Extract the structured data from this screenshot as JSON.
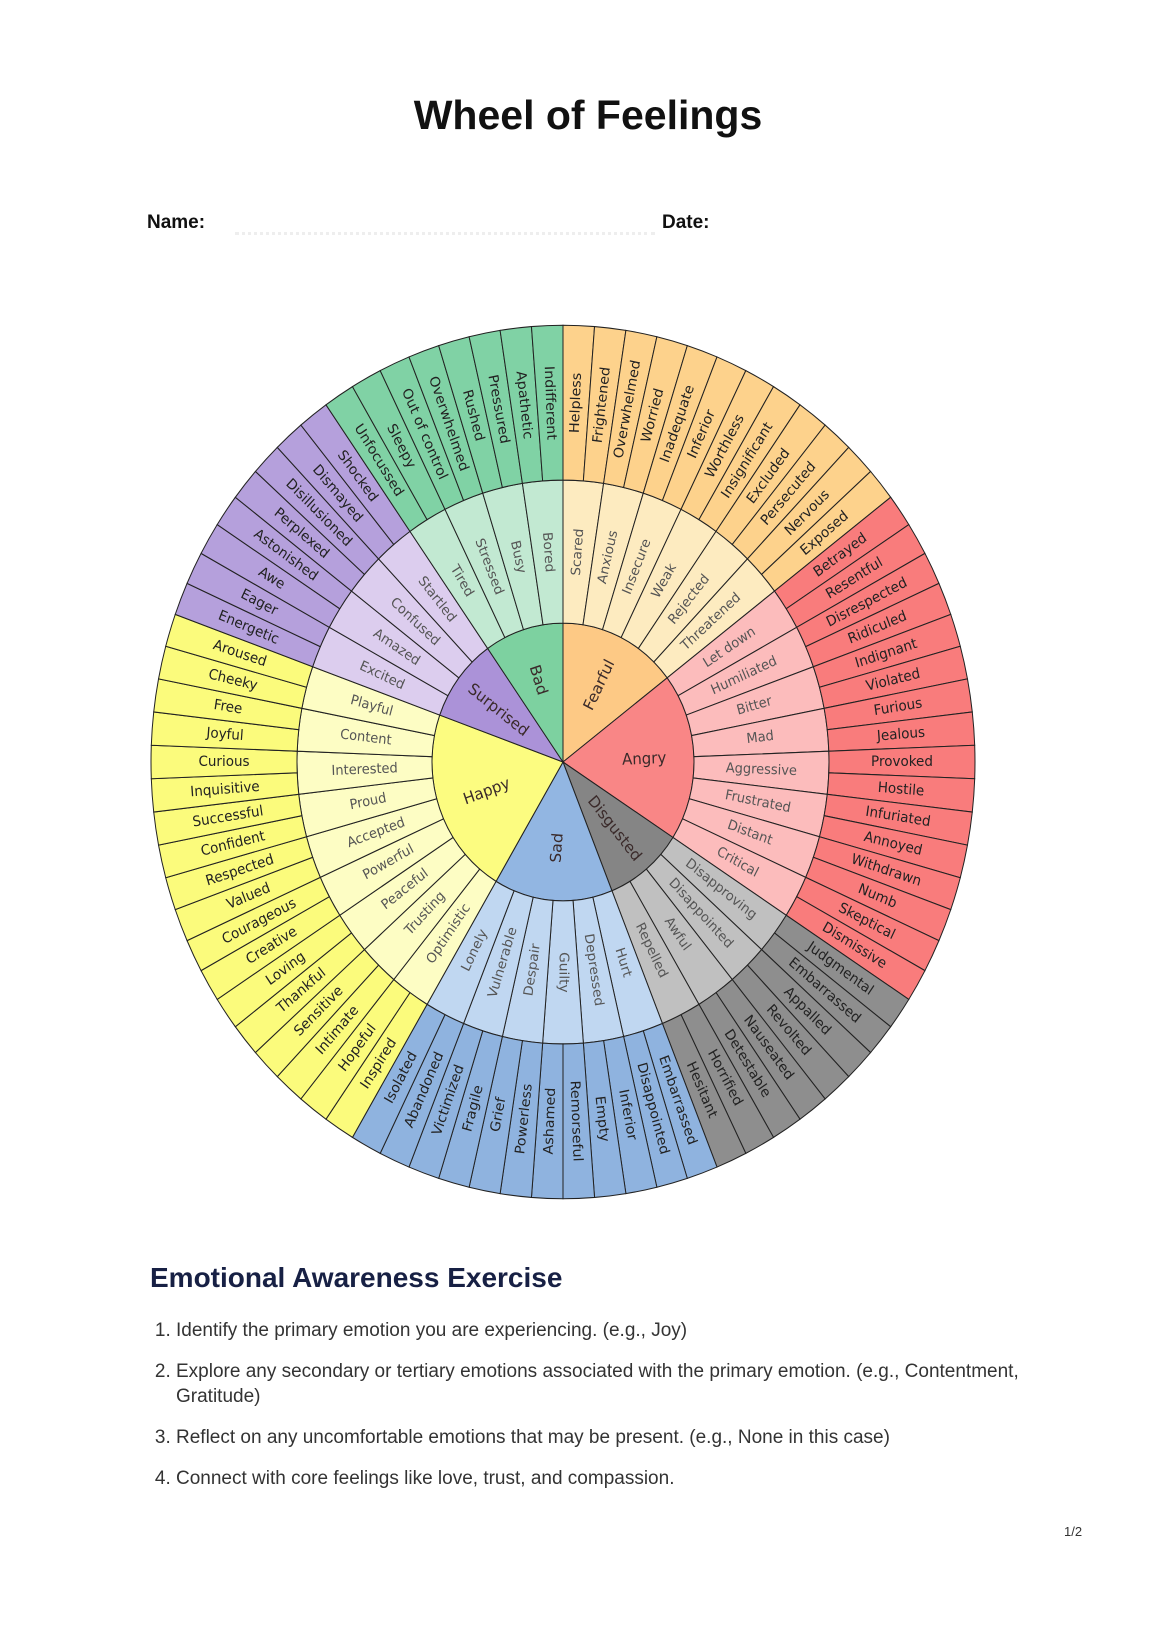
{
  "title": "Wheel of Feelings",
  "form": {
    "name_label": "Name:",
    "date_label": "Date:"
  },
  "wheel": {
    "primaries": [
      {
        "name": "Fearful",
        "colors": {
          "inner": "#fdc985",
          "middle": "#fdebc0",
          "outer": "#fdd28c"
        },
        "secondaries": [
          {
            "name": "Scared",
            "tertiary": [
              "Helpless",
              "Frightened"
            ]
          },
          {
            "name": "Anxious",
            "tertiary": [
              "Overwhelmed",
              "Worried"
            ]
          },
          {
            "name": "Insecure",
            "tertiary": [
              "Inadequate",
              "Inferior"
            ]
          },
          {
            "name": "Weak",
            "tertiary": [
              "Worthless",
              "Insignificant"
            ]
          },
          {
            "name": "Rejected",
            "tertiary": [
              "Excluded",
              "Persecuted"
            ]
          },
          {
            "name": "Threatened",
            "tertiary": [
              "Nervous",
              "Exposed"
            ]
          }
        ]
      },
      {
        "name": "Angry",
        "colors": {
          "inner": "#f98686",
          "middle": "#fcbcbc",
          "outer": "#f97c7c"
        },
        "secondaries": [
          {
            "name": "Let down",
            "tertiary": [
              "Betrayed",
              "Resentful"
            ]
          },
          {
            "name": "Humiliated",
            "tertiary": [
              "Disrespected",
              "Ridiculed"
            ]
          },
          {
            "name": "Bitter",
            "tertiary": [
              "Indignant",
              "Violated"
            ]
          },
          {
            "name": "Mad",
            "tertiary": [
              "Furious",
              "Jealous"
            ]
          },
          {
            "name": "Aggressive",
            "tertiary": [
              "Provoked",
              "Hostile"
            ]
          },
          {
            "name": "Frustrated",
            "tertiary": [
              "Infuriated",
              "Annoyed"
            ]
          },
          {
            "name": "Distant",
            "tertiary": [
              "Withdrawn",
              "Numb"
            ]
          },
          {
            "name": "Critical",
            "tertiary": [
              "Skeptical",
              "Dismissive"
            ]
          }
        ]
      },
      {
        "name": "Disgusted",
        "colors": {
          "inner": "#858585",
          "middle": "#c0c0c0",
          "outer": "#8e8e8e"
        },
        "secondaries": [
          {
            "name": "Disapproving",
            "tertiary": [
              "Judgmental",
              "Embarrassed"
            ]
          },
          {
            "name": "Disappointed",
            "tertiary": [
              "Appalled",
              "Revolted"
            ]
          },
          {
            "name": "Awful",
            "tertiary": [
              "Nauseated",
              "Detestable"
            ]
          },
          {
            "name": "Repelled",
            "tertiary": [
              "Horrified",
              "Hesitant"
            ]
          }
        ]
      },
      {
        "name": "Sad",
        "colors": {
          "inner": "#92b6e2",
          "middle": "#c0d7f1",
          "outer": "#8fb3df"
        },
        "secondaries": [
          {
            "name": "Hurt",
            "tertiary": [
              "Embarrassed",
              "Disappointed"
            ]
          },
          {
            "name": "Depressed",
            "tertiary": [
              "Inferior",
              "Empty"
            ]
          },
          {
            "name": "Guilty",
            "tertiary": [
              "Remorseful",
              "Ashamed"
            ]
          },
          {
            "name": "Despair",
            "tertiary": [
              "Powerless",
              "Grief"
            ]
          },
          {
            "name": "Vulnerable",
            "tertiary": [
              "Fragile",
              "Victimized"
            ]
          },
          {
            "name": "Lonely",
            "tertiary": [
              "Abandoned",
              "Isolated"
            ]
          }
        ]
      },
      {
        "name": "Happy",
        "colors": {
          "inner": "#fcfc80",
          "middle": "#fdfdc4",
          "outer": "#fbfb7c"
        },
        "secondaries": [
          {
            "name": "Optimistic",
            "tertiary": [
              "Inspired",
              "Hopeful"
            ]
          },
          {
            "name": "Trusting",
            "tertiary": [
              "Intimate",
              "Sensitive"
            ]
          },
          {
            "name": "Peaceful",
            "tertiary": [
              "Thankful",
              "Loving"
            ]
          },
          {
            "name": "Powerful",
            "tertiary": [
              "Creative",
              "Courageous"
            ]
          },
          {
            "name": "Accepted",
            "tertiary": [
              "Valued",
              "Respected"
            ]
          },
          {
            "name": "Proud",
            "tertiary": [
              "Confident",
              "Successful"
            ]
          },
          {
            "name": "Interested",
            "tertiary": [
              "Inquisitive",
              "Curious"
            ]
          },
          {
            "name": "Content",
            "tertiary": [
              "Joyful",
              "Free"
            ]
          },
          {
            "name": "Playful",
            "tertiary": [
              "Cheeky",
              "Aroused"
            ]
          }
        ]
      },
      {
        "name": "Surprised",
        "colors": {
          "inner": "#ab92d8",
          "middle": "#dccdee",
          "outer": "#b5a0dc"
        },
        "secondaries": [
          {
            "name": "Excited",
            "tertiary": [
              "Energetic",
              "Eager"
            ]
          },
          {
            "name": "Amazed",
            "tertiary": [
              "Awe",
              "Astonished"
            ]
          },
          {
            "name": "Confused",
            "tertiary": [
              "Perplexed",
              "Disillusioned"
            ]
          },
          {
            "name": "Startled",
            "tertiary": [
              "Dismayed",
              "Shocked"
            ]
          }
        ]
      },
      {
        "name": "Bad",
        "colors": {
          "inner": "#7dd1a0",
          "middle": "#c2e9d2",
          "outer": "#80d2a5"
        },
        "secondaries": [
          {
            "name": "Tired",
            "tertiary": [
              "Unfocussed",
              "Sleepy"
            ]
          },
          {
            "name": "Stressed",
            "tertiary": [
              "Out of control",
              "Overwhelmed"
            ]
          },
          {
            "name": "Busy",
            "tertiary": [
              "Rushed",
              "Pressured"
            ]
          },
          {
            "name": "Bored",
            "tertiary": [
              "Apathetic",
              "Indifferent"
            ]
          }
        ]
      }
    ]
  },
  "exercise": {
    "heading": "Emotional Awareness Exercise",
    "steps": [
      "Identify the primary emotion you are experiencing. (e.g., Joy)",
      "Explore any secondary or tertiary emotions associated with the primary emotion. (e.g., Contentment, Gratitude)",
      "Reflect on any uncomfortable emotions that may be present. (e.g., None in this case)",
      "Connect with core feelings like love, trust, and compassion."
    ]
  },
  "page_number": "1/2"
}
